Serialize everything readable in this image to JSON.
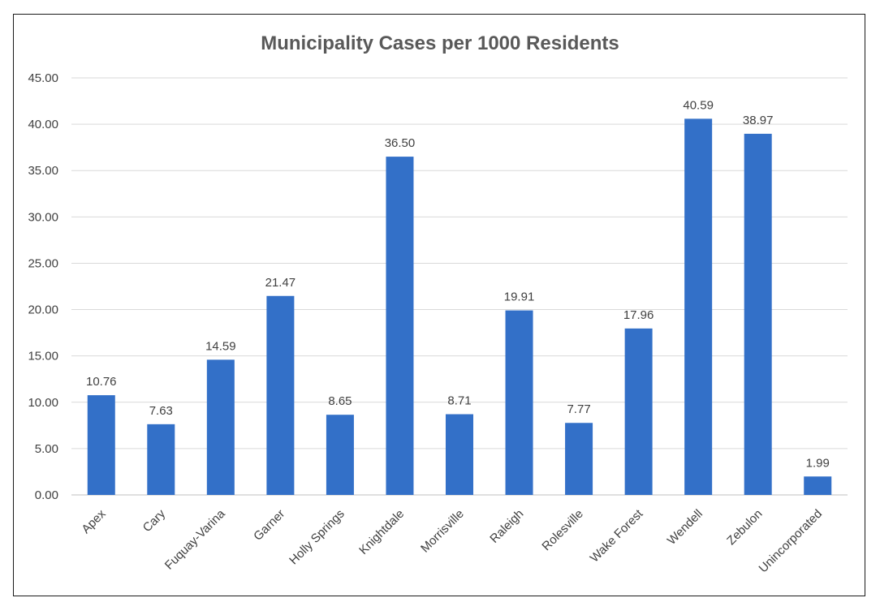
{
  "chart_data": {
    "type": "bar",
    "title": "Municipality Cases per 1000 Residents",
    "xlabel": "",
    "ylabel": "",
    "categories": [
      "Apex",
      "Cary",
      "Fuquay-Varina",
      "Garner",
      "Holly Springs",
      "Knightdale",
      "Morrisville",
      "Raleigh",
      "Rolesville",
      "Wake Forest",
      "Wendell",
      "Zebulon",
      "Unincorporated"
    ],
    "values": [
      10.76,
      7.63,
      14.59,
      21.47,
      8.65,
      36.5,
      8.71,
      19.91,
      7.77,
      17.96,
      40.59,
      38.97,
      1.99
    ],
    "data_labels": [
      "10.76",
      "7.63",
      "14.59",
      "21.47",
      "8.65",
      "36.50",
      "8.71",
      "19.91",
      "7.77",
      "17.96",
      "40.59",
      "38.97",
      "1.99"
    ],
    "ylim": [
      0,
      45
    ],
    "yticks": [
      "0.00",
      "5.00",
      "10.00",
      "15.00",
      "20.00",
      "25.00",
      "30.00",
      "35.00",
      "40.00",
      "45.00"
    ],
    "grid": true,
    "legend": "none",
    "bar_color": "#3370c8",
    "grid_color": "#d9d9d9"
  }
}
